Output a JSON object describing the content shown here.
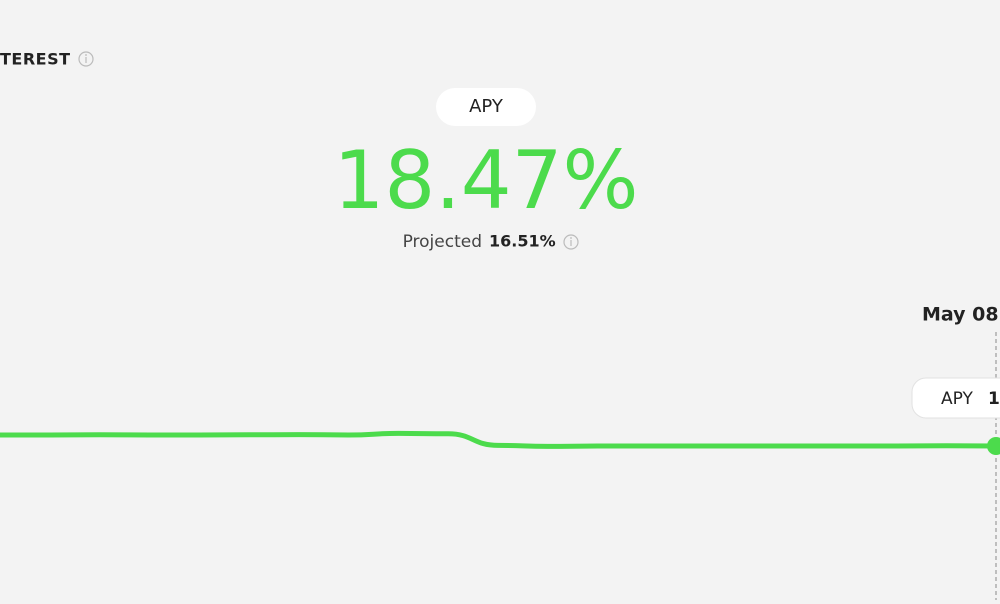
{
  "header": {
    "title": "TEREST"
  },
  "metric": {
    "pill": "APY",
    "value": "18.47%",
    "projected_label": "Projected",
    "projected_value": "16.51%"
  },
  "chart_data": {
    "type": "line",
    "color": "#4cdb4c",
    "values": [
      19.02,
      19.02,
      19.03,
      19.02,
      19.02,
      19.03,
      19.04,
      19.02,
      19.1,
      19.08,
      18.5,
      18.45,
      18.47,
      18.47,
      18.47,
      18.47,
      18.47,
      18.47,
      18.47,
      18.48,
      18.47
    ],
    "ylim": [
      10.77,
      25.77
    ],
    "cursor_date": "May 08",
    "tooltip": {
      "label": "APY",
      "value": "1"
    }
  }
}
